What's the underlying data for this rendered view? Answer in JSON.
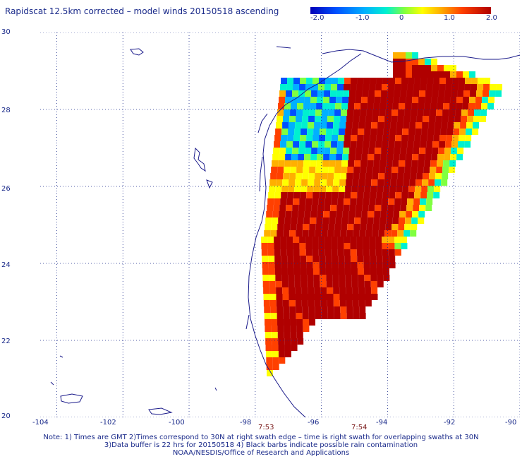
{
  "title": "Rapidscat 12.5km corrected – model winds 20150518 ascending",
  "colorbar": {
    "ticks": [
      "-2.0",
      "-1.0",
      "0",
      "1.0",
      "2.0"
    ],
    "colors": [
      "#0000b8",
      "#0050ff",
      "#00b0ff",
      "#00f0d0",
      "#80ff40",
      "#ffff00",
      "#ffb000",
      "#ff4000",
      "#b00000"
    ]
  },
  "map": {
    "lat_labels": [
      "30",
      "28",
      "26",
      "24",
      "22",
      "20"
    ],
    "lon_labels": [
      "-104",
      "-102",
      "-100",
      "-98",
      "-96",
      "-94",
      "-92",
      "-90"
    ],
    "times": [
      "7:53",
      "7:54"
    ],
    "lon_range": [
      -104.5,
      -90
    ],
    "lat_range": [
      20,
      30
    ],
    "grid": true
  },
  "notes": {
    "line1": "Note: 1) Times are GMT 2)Times correspond to 30N at right swath edge – time is right swath for overlapping swaths at 30N",
    "line2": "3)Data buffer is 22 hrs for 20150518 4) Black barbs indicate possible rain contamination",
    "line3": "NOAA/NESDIS/Office of Research and Applications"
  }
}
